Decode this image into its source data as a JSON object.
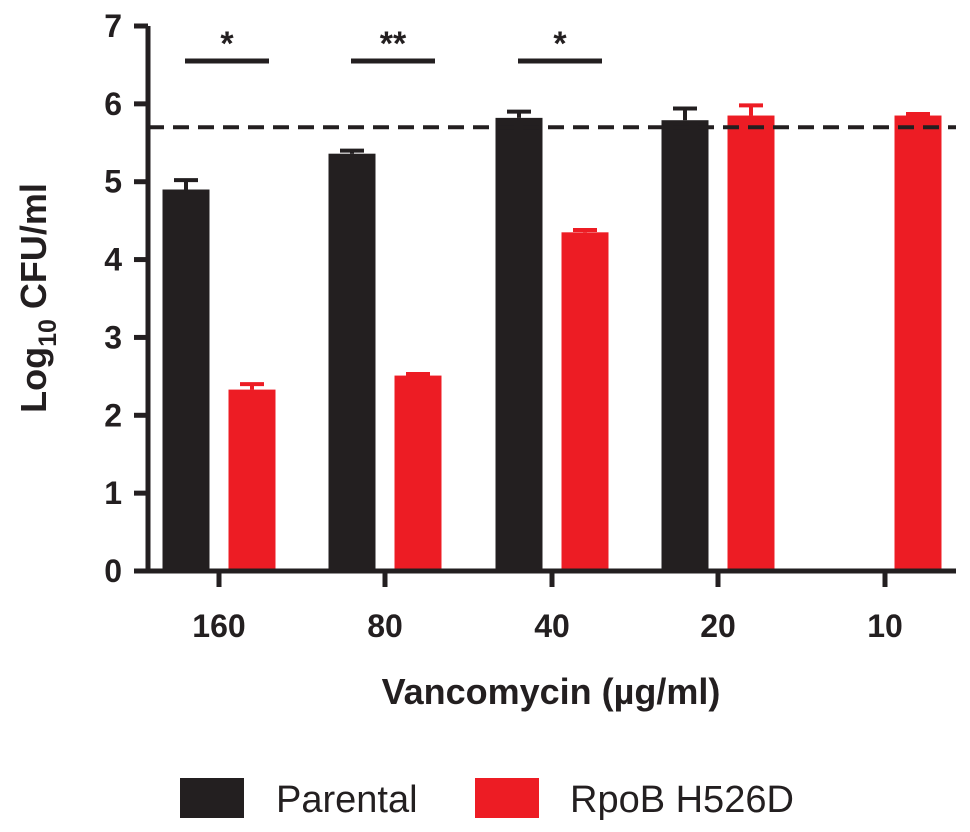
{
  "chart_data": {
    "type": "bar",
    "title": "",
    "xlabel": "Vancomycin (µg/ml)",
    "ylabel_main": "Log",
    "ylabel_sub": "10",
    "ylabel_rest": " CFU/ml",
    "ylim": [
      0,
      7
    ],
    "yticks": [
      "0",
      "1",
      "2",
      "3",
      "4",
      "5",
      "6",
      "7"
    ],
    "categories": [
      "160",
      "80",
      "40",
      "20",
      "10"
    ],
    "series": [
      {
        "name": "Parental",
        "color": "#231f20",
        "values": [
          4.9,
          5.36,
          5.82,
          5.79,
          null
        ],
        "errors": [
          0.12,
          0.04,
          0.08,
          0.15,
          null
        ]
      },
      {
        "name": "RpoB H526D",
        "color": "#ed1c24",
        "values": [
          2.33,
          2.51,
          4.35,
          5.85,
          5.85
        ],
        "errors": [
          0.07,
          0.02,
          0.03,
          0.13,
          0.02
        ]
      }
    ],
    "reference_line": {
      "y": 5.7,
      "style": "dashed"
    },
    "significance": [
      {
        "category_index": 0,
        "label": "*"
      },
      {
        "category_index": 1,
        "label": "**"
      },
      {
        "category_index": 2,
        "label": "*"
      }
    ],
    "legend_position": "bottom-center"
  }
}
